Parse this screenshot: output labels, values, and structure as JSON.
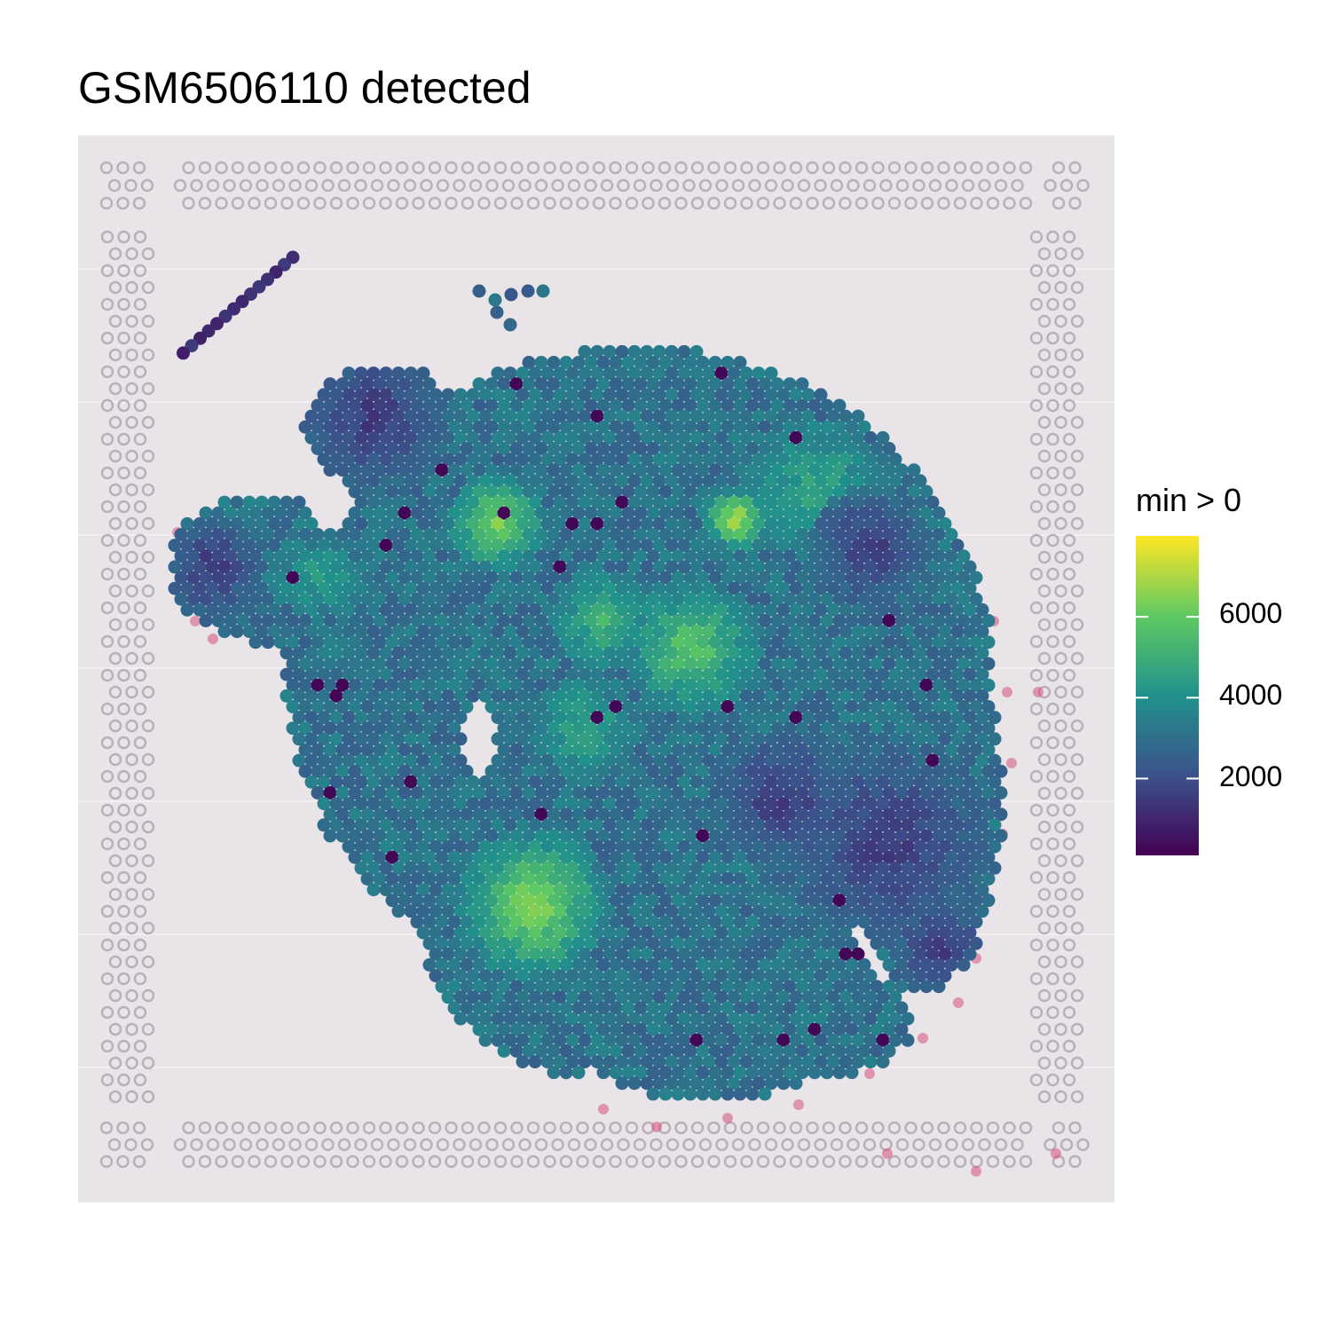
{
  "chart_data": {
    "type": "scatter",
    "title": "GSM6506110 detected",
    "subtitle": "",
    "xlabel": "",
    "ylabel": "",
    "grid": false,
    "background_image": "H&E tissue section with Visium fiducial spot frame",
    "legend": {
      "title": "min > 0",
      "placement": "right",
      "ticks": [
        6000,
        4000,
        2000
      ],
      "tick_labels": [
        "6000",
        "4000",
        "2000"
      ],
      "range": [
        100,
        8000
      ],
      "colormap": "viridis",
      "color_stops": [
        "#440154",
        "#3b528b",
        "#21918c",
        "#5ec962",
        "#fde725"
      ]
    },
    "series": [
      {
        "values_description_levels": [
          "low",
          "mid",
          "high"
        ],
        "hotspots": [
          {
            "region": "upper-center",
            "value": 6500
          },
          {
            "region": "center-right",
            "value": 7200
          },
          {
            "region": "lower-left",
            "value": 7600
          },
          {
            "region": "right",
            "value": 1500
          },
          {
            "region": "upper-left arc",
            "value": 800
          }
        ]
      }
    ]
  },
  "colors": {
    "tissue_bg": "#e9e4e8",
    "fiducial": "#b9b0bb",
    "stain": "#d9507c"
  }
}
